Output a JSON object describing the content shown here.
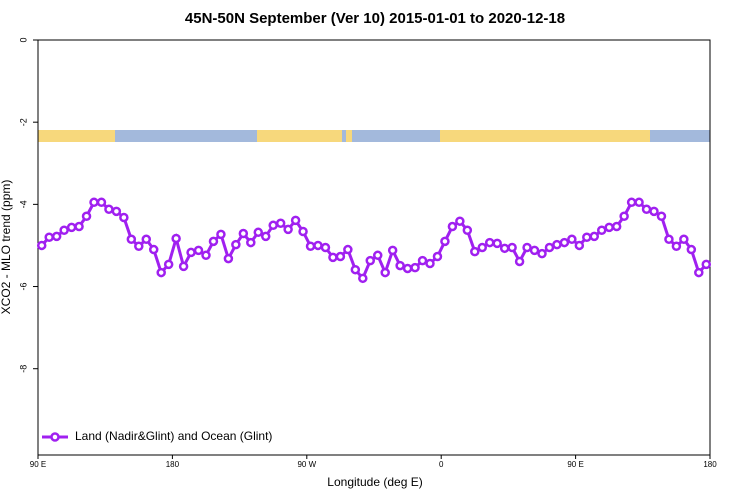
{
  "chart_data": {
    "type": "line",
    "title": "45N-50N September (Ver 10)   2015-01-01 to 2020-12-18",
    "x_label": "Longitude (deg E)",
    "y_label": "XCO2 - MLO trend (ppm)",
    "xlim": [
      90,
      540
    ],
    "ylim": [
      -10.1,
      0
    ],
    "xticks": [
      {
        "value": 90,
        "label": "90 E"
      },
      {
        "value": 180,
        "label": "180"
      },
      {
        "value": 270,
        "label": "90 W"
      },
      {
        "value": 360,
        "label": "0"
      },
      {
        "value": 450,
        "label": "90 E"
      },
      {
        "value": 540,
        "label": "180"
      }
    ],
    "yticks": [
      0,
      -2,
      -4,
      -6,
      -8
    ],
    "legend": "bottom-left",
    "x": [
      92.5,
      97.5,
      102.5,
      107.5,
      112.5,
      117.5,
      122.5,
      127.5,
      132.5,
      137.5,
      142.5,
      147.5,
      152.5,
      157.5,
      162.5,
      167.5,
      172.5,
      177.5,
      182.5,
      187.5,
      192.5,
      197.5,
      202.5,
      207.5,
      212.5,
      217.5,
      222.5,
      227.5,
      232.5,
      237.5,
      242.5,
      247.5,
      252.5,
      257.5,
      262.5,
      267.5,
      272.5,
      277.5,
      282.5,
      287.5,
      292.5,
      297.5,
      302.5,
      307.5,
      312.5,
      317.5,
      322.5,
      327.5,
      332.5,
      337.5,
      342.5,
      347.5,
      352.5,
      357.5,
      362.5,
      367.5,
      372.5,
      377.5,
      382.5,
      387.5,
      392.5,
      397.5,
      402.5,
      407.5,
      412.5,
      417.5,
      422.5,
      427.5,
      432.5,
      437.5,
      442.5,
      447.5,
      452.5,
      457.5,
      462.5,
      467.5,
      472.5,
      477.5,
      482.5,
      487.5,
      492.5,
      497.5,
      502.5,
      507.5,
      512.5,
      517.5,
      522.5,
      527.5,
      532.5,
      537.5
    ],
    "series": [
      {
        "name": "Land (Nadir&Glint) and Ocean (Glint)",
        "color": "#a020f0",
        "values": [
          -5.0,
          -4.8,
          -4.78,
          -4.63,
          -4.56,
          -4.54,
          -4.29,
          -3.95,
          -3.95,
          -4.12,
          -4.17,
          -4.32,
          -4.85,
          -5.02,
          -4.85,
          -5.1,
          -5.66,
          -5.46,
          -4.83,
          -5.51,
          -5.17,
          -5.12,
          -5.24,
          -4.9,
          -4.73,
          -5.32,
          -4.98,
          -4.71,
          -4.93,
          -4.68,
          -4.78,
          -4.51,
          -4.46,
          -4.61,
          -4.39,
          -4.66,
          -5.02,
          -5.0,
          -5.05,
          -5.29,
          -5.27,
          -5.1,
          -5.59,
          -5.8,
          -5.37,
          -5.24,
          -5.66,
          -5.12,
          -5.49,
          -5.56,
          -5.54,
          -5.37,
          -5.44,
          -5.27,
          -4.9,
          -4.54,
          -4.41,
          -4.63,
          -5.15,
          -5.05,
          -4.93,
          -4.95,
          -5.07,
          -5.05,
          -5.39,
          -5.05,
          -5.12,
          -5.2,
          -5.05,
          -4.98,
          -4.93,
          -4.85,
          -5.0,
          -4.8,
          -4.78,
          -4.63,
          -4.56,
          -4.54,
          -4.29,
          -3.95,
          -3.95,
          -4.12,
          -4.17,
          -4.29,
          -4.85,
          -5.02,
          -4.85,
          -5.1,
          -5.66,
          -5.46
        ]
      }
    ]
  }
}
